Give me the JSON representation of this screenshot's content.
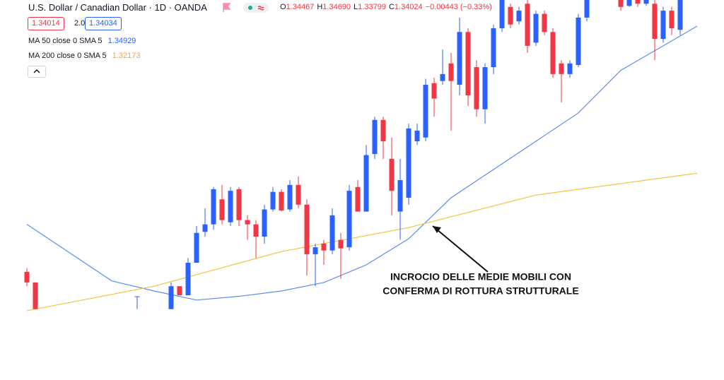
{
  "chart_data": {
    "type": "candlestick",
    "title": "U.S. Dollar / Canadian Dollar · 1D · OANDA",
    "ohlc": [
      {
        "label": "O",
        "value": 1.34467
      },
      {
        "label": "H",
        "value": 1.3469,
        "text": "1.34690"
      },
      {
        "label": "L",
        "value": 1.33799
      },
      {
        "label": "C",
        "value": 1.34024
      }
    ],
    "change": "−0.00443 (−0.33%)",
    "sell": 1.34014,
    "spread": "2.0",
    "buy": 1.34034,
    "up_color": "#2962ff",
    "down_color": "#f23645",
    "ylim": [
      1.2829,
      1.3542
    ],
    "categories": [
      null,
      null,
      null,
      null,
      null,
      null,
      null,
      null,
      null,
      null,
      null,
      null,
      null,
      null,
      null,
      null,
      null,
      null,
      null,
      null,
      null,
      null,
      null,
      null,
      null,
      null,
      null,
      null,
      null,
      null,
      null,
      null,
      null,
      null,
      null,
      null,
      null,
      null,
      null,
      null,
      null,
      null,
      null,
      null,
      null,
      null,
      null,
      null,
      null,
      null,
      null,
      null,
      null,
      null,
      null,
      null,
      null,
      null,
      null,
      null,
      null,
      null,
      null,
      null,
      null,
      null,
      null,
      null,
      null,
      null,
      null,
      null,
      null,
      null,
      null,
      null,
      null,
      null
    ],
    "open": [
      1.3032,
      1.3012,
      null,
      null,
      null,
      null,
      null,
      null,
      null,
      null,
      null,
      null,
      null,
      1.2986,
      null,
      null,
      null,
      1.2962,
      1.3005,
      1.2988,
      1.3049,
      1.3107,
      1.3121,
      1.3168,
      1.3125,
      1.3187,
      1.3129,
      1.3121,
      1.3098,
      1.3149,
      1.3182,
      1.3149,
      1.3195,
      1.3158,
      1.3065,
      1.3085,
      1.3072,
      1.3092,
      1.3078,
      1.3191,
      1.3145,
      1.3253,
      1.3317,
      1.3244,
      1.3145,
      1.3171,
      1.3277,
      1.3284,
      1.3386,
      1.339,
      1.3423,
      1.3383,
      1.3482,
      1.3416,
      1.3337,
      1.3416,
      1.3489,
      1.3529,
      1.3502,
      1.3535,
      1.3462,
      1.3516,
      1.3482,
      1.3423,
      1.3403,
      1.342,
      1.3509,
      null,
      null,
      null,
      1.3542,
      1.3531,
      1.3542,
      1.3535,
      1.3535,
      1.3469,
      1.3522,
      1.3486
    ],
    "high": [
      1.3039,
      1.3012,
      null,
      null,
      null,
      null,
      null,
      null,
      null,
      null,
      null,
      null,
      null,
      1.2986,
      null,
      null,
      null,
      1.3012,
      1.3005,
      1.3058,
      1.3118,
      1.3151,
      1.3191,
      1.3195,
      1.3191,
      1.3191,
      1.3138,
      1.3129,
      1.3158,
      1.3191,
      1.3187,
      1.3204,
      1.3211,
      1.3168,
      1.3085,
      1.3092,
      1.3151,
      1.3105,
      1.3195,
      1.3204,
      1.327,
      1.3323,
      1.3323,
      1.3284,
      1.3244,
      1.331,
      1.331,
      1.3394,
      1.3396,
      1.3449,
      1.3443,
      1.3509,
      1.3489,
      1.3429,
      1.3423,
      1.3496,
      1.3555,
      1.3535,
      1.3529,
      1.3542,
      1.3522,
      1.3522,
      1.3489,
      1.3429,
      1.3429,
      1.3516,
      1.3555,
      null,
      null,
      null,
      1.3549,
      1.3549,
      1.3549,
      1.3555,
      1.3549,
      1.3529,
      1.3529,
      1.3555
    ],
    "low": [
      1.3005,
      1.2962,
      null,
      null,
      null,
      null,
      null,
      null,
      null,
      null,
      null,
      null,
      null,
      1.2962,
      null,
      null,
      null,
      1.2962,
      1.2988,
      1.2988,
      1.3049,
      1.3098,
      1.3111,
      1.3121,
      1.3118,
      1.3118,
      1.3092,
      1.3058,
      1.3085,
      1.3145,
      1.3145,
      1.3145,
      1.3151,
      1.3025,
      1.3005,
      1.3045,
      1.3065,
      1.3019,
      1.3072,
      1.3145,
      1.3145,
      1.3244,
      1.3244,
      1.3138,
      1.3092,
      1.3158,
      1.327,
      1.3277,
      1.3323,
      1.3383,
      1.3297,
      1.3363,
      1.3343,
      1.3323,
      1.331,
      1.3403,
      1.3482,
      1.3489,
      1.3496,
      1.3443,
      1.3456,
      1.3476,
      1.3396,
      1.335,
      1.3396,
      1.3416,
      1.3502,
      null,
      null,
      null,
      1.3522,
      1.3529,
      1.3529,
      1.3531,
      1.3429,
      1.3462,
      1.3476,
      1.3476
    ],
    "close": [
      1.3012,
      1.2962,
      null,
      null,
      null,
      null,
      null,
      null,
      null,
      null,
      null,
      null,
      null,
      1.2986,
      null,
      null,
      null,
      1.3005,
      1.2988,
      1.3049,
      1.3105,
      1.3121,
      1.3187,
      1.3129,
      1.3184,
      1.3129,
      1.3121,
      1.3098,
      1.3149,
      1.3182,
      1.3147,
      1.3195,
      1.3158,
      1.3065,
      1.3078,
      1.3072,
      1.3138,
      1.3076,
      1.3184,
      1.3145,
      1.3251,
      1.3317,
      1.3277,
      1.3184,
      1.3204,
      1.3301,
      1.3297,
      1.3383,
      1.3357,
      1.3403,
      1.339,
      1.3482,
      1.3363,
      1.3337,
      1.3416,
      1.3489,
      1.3542,
      1.3496,
      1.3522,
      1.3456,
      1.3516,
      1.3482,
      1.3403,
      1.3403,
      1.3423,
      1.3509,
      1.3555,
      null,
      null,
      null,
      1.3529,
      1.3542,
      1.3535,
      1.3542,
      1.3469,
      1.3522,
      1.3489,
      1.3555
    ],
    "lines": [
      {
        "name": "MA 50 close 0 SMA 5",
        "last_value": 1.34929,
        "color": "#5b8def",
        "label_color": "#2962ff",
        "x": [
          0,
          5,
          10,
          15,
          20,
          25,
          30,
          35,
          40,
          45,
          50,
          55,
          60,
          65,
          70,
          75,
          79
        ],
        "values": [
          1.3121,
          1.3068,
          1.3015,
          1.2996,
          1.2979,
          1.2986,
          1.2996,
          1.3012,
          1.3045,
          1.3094,
          1.3171,
          1.3224,
          1.3277,
          1.333,
          1.341,
          1.3456,
          1.3493
        ]
      },
      {
        "name": "MA 200 close 0 SMA 5",
        "last_value": 1.32173,
        "color": "#f5c242",
        "label_color": "#f5a623",
        "x": [
          0,
          15,
          30,
          45,
          60,
          79
        ],
        "values": [
          1.2959,
          1.3005,
          1.307,
          1.3115,
          1.3176,
          1.3217
        ]
      }
    ],
    "annotation": [
      "INCROCIO DELLE MEDIE MOBILI CON",
      "CONFERMA DI ROTTURA STRUTTURALE"
    ]
  }
}
